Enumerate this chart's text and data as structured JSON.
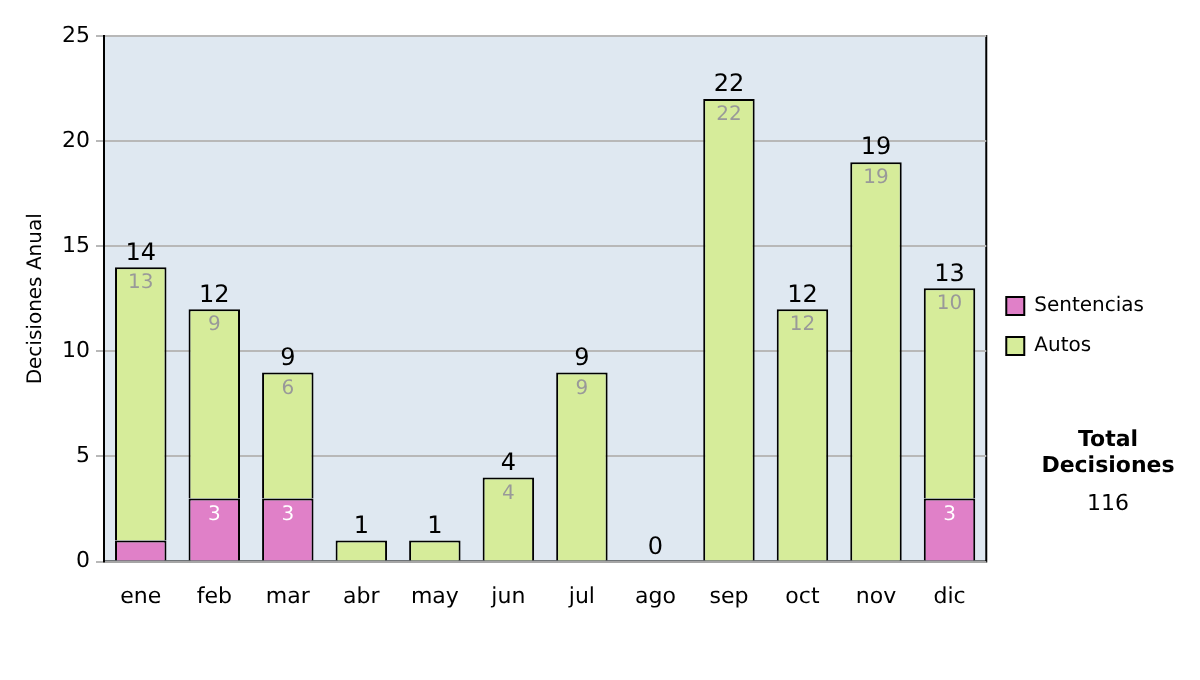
{
  "chart_data": {
    "type": "bar",
    "ylabel": "Decisiones Anual",
    "categories": [
      "ene",
      "feb",
      "mar",
      "abr",
      "may",
      "jun",
      "jul",
      "ago",
      "sep",
      "oct",
      "nov",
      "dic"
    ],
    "stacked": true,
    "series": [
      {
        "name": "Sentencias",
        "color": "#e080c8",
        "values": [
          1,
          3,
          3,
          0,
          0,
          0,
          0,
          0,
          0,
          0,
          0,
          3
        ],
        "value_labels": [
          null,
          "3",
          "3",
          null,
          null,
          null,
          null,
          null,
          null,
          null,
          null,
          "3"
        ]
      },
      {
        "name": "Autos",
        "color": "#d6ec9a",
        "values": [
          13,
          9,
          6,
          1,
          1,
          4,
          9,
          0,
          22,
          12,
          19,
          10
        ],
        "value_labels": [
          "13",
          "9",
          "6",
          null,
          null,
          "4",
          "9",
          null,
          "22",
          "12",
          "19",
          "10"
        ]
      }
    ],
    "totals": [
      "14",
      "12",
      "9",
      "1",
      "1",
      "4",
      "9",
      "0",
      "22",
      "12",
      "19",
      "13"
    ],
    "ylim": [
      0,
      25
    ],
    "yticks": [
      0,
      5,
      10,
      15,
      20,
      25
    ],
    "grid": "y",
    "legend": "right",
    "annotations": [
      "Total Decisiones",
      "116"
    ]
  }
}
